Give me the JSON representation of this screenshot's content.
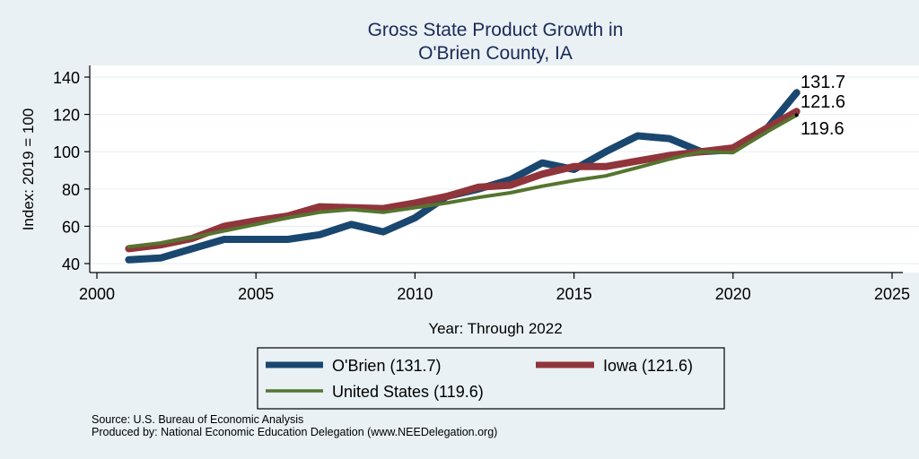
{
  "chart_data": {
    "type": "line",
    "title": "Gross State Product Growth in",
    "subtitle": "O'Brien County, IA",
    "xlabel": "Year: Through 2022",
    "ylabel": "Index: 2019 = 100",
    "xlim": [
      2000,
      2025
    ],
    "ylim": [
      35,
      145
    ],
    "xticks": [
      2000,
      2005,
      2010,
      2015,
      2020,
      2025
    ],
    "yticks": [
      40,
      60,
      80,
      100,
      120,
      140
    ],
    "grid": true,
    "legend_position": "bottom",
    "x": [
      2001,
      2002,
      2003,
      2004,
      2005,
      2006,
      2007,
      2008,
      2009,
      2010,
      2011,
      2012,
      2013,
      2014,
      2015,
      2016,
      2017,
      2018,
      2019,
      2020,
      2021,
      2022
    ],
    "series": [
      {
        "name": "O'Brien",
        "legend_label": "O'Brien  (131.7)",
        "color": "#1a476f",
        "values": [
          42,
          43,
          48,
          53,
          53,
          53,
          55.5,
          61,
          57,
          64.5,
          76,
          80,
          85,
          94,
          90.5,
          100,
          108.5,
          107,
          100,
          101,
          111,
          131.7
        ],
        "end_label": "131.7"
      },
      {
        "name": "Iowa",
        "legend_label": "Iowa (121.6)",
        "color": "#90353b",
        "values": [
          48,
          50,
          53.5,
          60,
          63,
          65.5,
          70.5,
          70,
          69.5,
          72.5,
          76,
          81,
          82,
          88,
          92,
          92,
          95,
          98,
          100,
          102,
          112,
          121.6
        ],
        "end_label": "121.6"
      },
      {
        "name": "United States",
        "legend_label": "United States (119.6)",
        "color": "#55752f",
        "values": [
          49,
          51,
          54,
          57.5,
          61,
          64.5,
          67.5,
          69,
          67.5,
          70,
          72.5,
          75.5,
          78,
          81.5,
          84.5,
          87,
          91.5,
          96,
          100,
          99.5,
          110,
          119.6
        ],
        "end_label": "119.6"
      }
    ]
  },
  "notes": {
    "source": "Source: U.S. Bureau of Economic Analysis",
    "produced_by": "Produced by: National Economic Education Delegation (www.NEEDelegation.org)"
  }
}
